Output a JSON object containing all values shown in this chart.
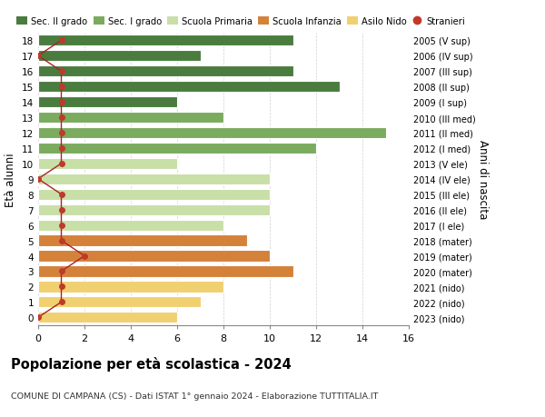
{
  "ages": [
    18,
    17,
    16,
    15,
    14,
    13,
    12,
    11,
    10,
    9,
    8,
    7,
    6,
    5,
    4,
    3,
    2,
    1,
    0
  ],
  "bar_values": [
    11,
    7,
    11,
    13,
    6,
    8,
    15,
    12,
    6,
    10,
    10,
    10,
    8,
    9,
    10,
    11,
    8,
    7,
    6
  ],
  "stranieri_values": [
    1,
    0,
    1,
    1,
    1,
    1,
    1,
    1,
    1,
    0,
    1,
    1,
    1,
    1,
    2,
    1,
    1,
    1,
    0
  ],
  "right_labels": [
    "2005 (V sup)",
    "2006 (IV sup)",
    "2007 (III sup)",
    "2008 (II sup)",
    "2009 (I sup)",
    "2010 (III med)",
    "2011 (II med)",
    "2012 (I med)",
    "2013 (V ele)",
    "2014 (IV ele)",
    "2015 (III ele)",
    "2016 (II ele)",
    "2017 (I ele)",
    "2018 (mater)",
    "2019 (mater)",
    "2020 (mater)",
    "2021 (nido)",
    "2022 (nido)",
    "2023 (nido)"
  ],
  "bar_colors": [
    "#4a7c3f",
    "#4a7c3f",
    "#4a7c3f",
    "#4a7c3f",
    "#4a7c3f",
    "#7aab5e",
    "#7aab5e",
    "#7aab5e",
    "#c8dfa8",
    "#c8dfa8",
    "#c8dfa8",
    "#c8dfa8",
    "#c8dfa8",
    "#d4823a",
    "#d4823a",
    "#d4823a",
    "#f0d070",
    "#f0d070",
    "#f0d070"
  ],
  "legend_labels": [
    "Sec. II grado",
    "Sec. I grado",
    "Scuola Primaria",
    "Scuola Infanzia",
    "Asilo Nido",
    "Stranieri"
  ],
  "legend_colors": [
    "#4a7c3f",
    "#7aab5e",
    "#c8dfa8",
    "#d4823a",
    "#f0d070",
    "#c0392b"
  ],
  "ylabel_left": "Età alunni",
  "ylabel_right": "Anni di nascita",
  "title": "Popolazione per età scolastica - 2024",
  "subtitle": "COMUNE DI CAMPANA (CS) - Dati ISTAT 1° gennaio 2024 - Elaborazione TUTTITALIA.IT",
  "xlim": [
    0,
    16
  ],
  "ylim": [
    -0.5,
    18.5
  ],
  "xticks": [
    0,
    2,
    4,
    6,
    8,
    10,
    12,
    14,
    16
  ],
  "stranieri_color": "#c0392b",
  "stranieri_line_color": "#aa2222",
  "grid_color": "#cccccc",
  "bar_height": 0.72
}
